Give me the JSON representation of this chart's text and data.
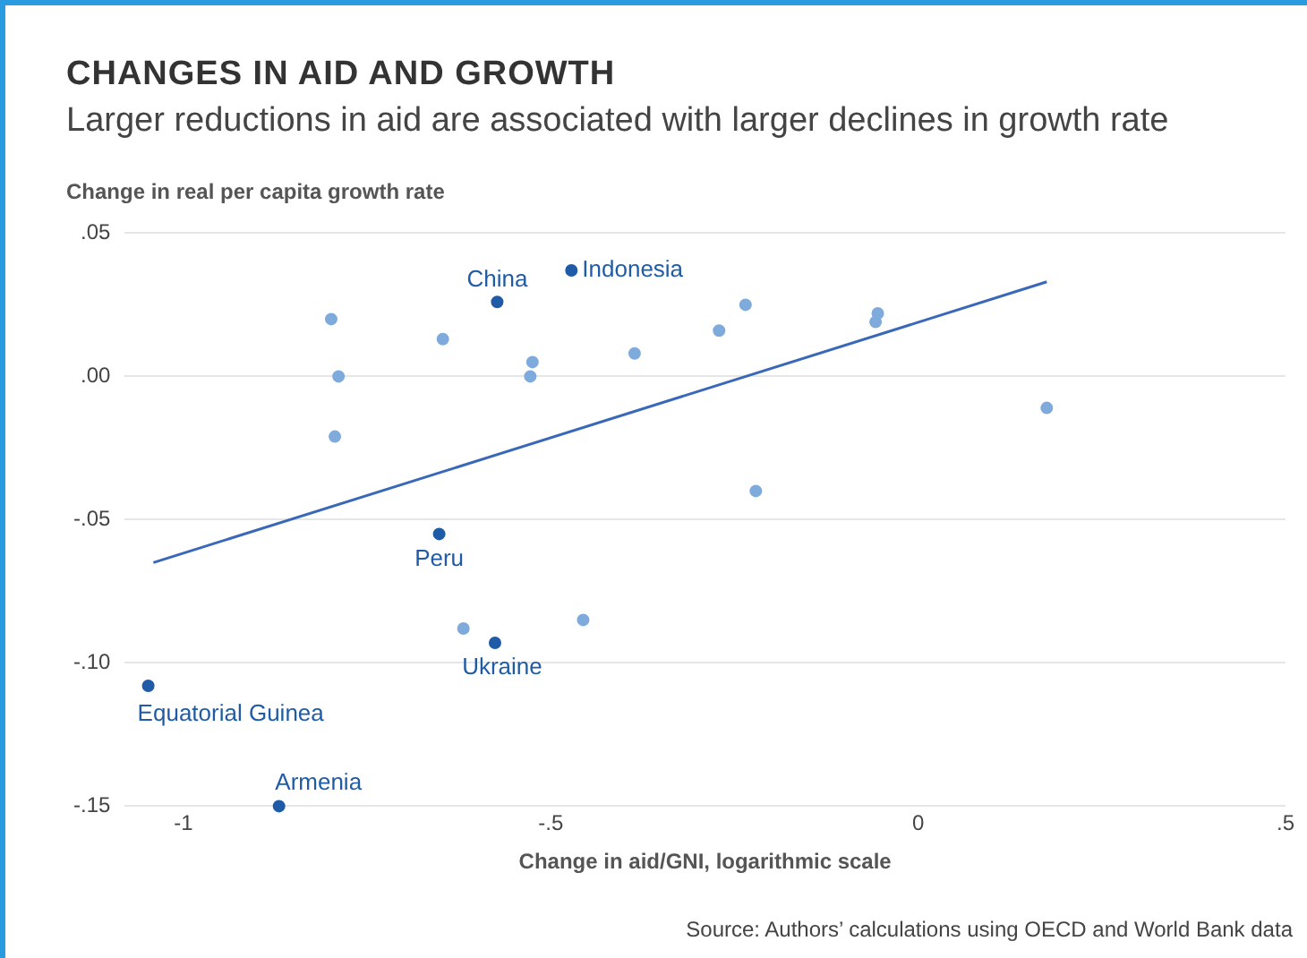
{
  "chart_data": {
    "type": "scatter",
    "title": "CHANGES IN AID AND GROWTH",
    "subtitle": "Larger reductions in aid are associated with larger declines in growth rate",
    "xlabel": "Change in aid/GNI, logarithmic scale",
    "ylabel": "Change in real per capita growth rate",
    "series": [
      {
        "marker": "circle",
        "color": "#7faadc",
        "x": [
          -0.799,
          -0.789,
          -0.794,
          -0.647,
          -0.525,
          -0.528,
          -0.386,
          -0.271,
          -0.235,
          -0.055,
          -0.058,
          0.175,
          -0.221,
          -0.619,
          -0.456
        ],
        "values": [
          0.02,
          0.0,
          -0.021,
          0.013,
          0.005,
          0.0,
          0.008,
          0.016,
          0.025,
          0.022,
          0.019,
          -0.011,
          -0.04,
          -0.088,
          -0.085
        ]
      },
      {
        "marker": "circle",
        "color": "#1f5ba6",
        "x": [
          -0.573,
          -0.472,
          -0.652,
          -0.576,
          -1.048,
          -0.87
        ],
        "values": [
          0.026,
          0.037,
          -0.055,
          -0.093,
          -0.108,
          -0.15
        ]
      },
      {
        "type": "line",
        "marker": "none",
        "color": "#3a68b8",
        "x": [
          -1.041,
          0.175
        ],
        "values": [
          -0.065,
          0.033
        ]
      }
    ],
    "annotations": [
      {
        "text": "China",
        "x": -0.573,
        "y": 0.026
      },
      {
        "text": "Indonesia",
        "x": -0.472,
        "y": 0.037
      },
      {
        "text": "Peru",
        "x": -0.652,
        "y": -0.055
      },
      {
        "text": "Ukraine",
        "x": -0.576,
        "y": -0.093
      },
      {
        "text": "Equatorial Guinea",
        "x": -1.048,
        "y": -0.108
      },
      {
        "text": "Armenia",
        "x": -0.87,
        "y": -0.15
      },
      "Source: Authors’ calculations using OECD and World Bank data"
    ],
    "xlim": [
      -1.08,
      0.5
    ],
    "ylim": [
      -0.15,
      0.05
    ],
    "xticks": [
      {
        "value": -1,
        "label": "-1"
      },
      {
        "value": -0.5,
        "label": "-.5"
      },
      {
        "value": 0,
        "label": "0"
      },
      {
        "value": 0.5,
        "label": ".5"
      }
    ],
    "yticks": [
      {
        "value": 0.05,
        "label": ".05"
      },
      {
        "value": 0,
        "label": ".00"
      },
      {
        "value": -0.05,
        "label": "-.05"
      },
      {
        "value": -0.1,
        "label": "-.10"
      },
      {
        "value": -0.15,
        "label": "-.15"
      }
    ],
    "grid": "y",
    "legend": false
  }
}
